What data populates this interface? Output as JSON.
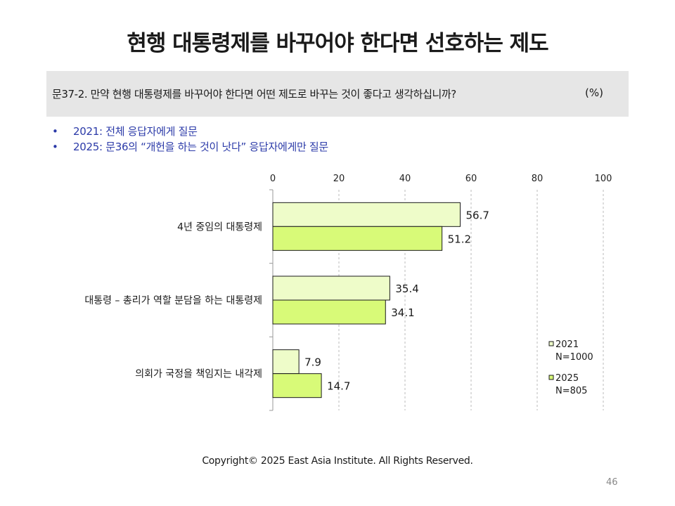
{
  "title": "현행 대통령제를 바꾸어야 한다면 선호하는 제도",
  "question": {
    "text": "문37-2. 만약 현행 대통령제를 바꾸어야 한다면 어떤 제도로 바꾸는 것이 좋다고 생각하십니까?",
    "unit": "(%)"
  },
  "notes": [
    {
      "bullet": "•",
      "text": "2021: 전체 응답자에게 질문"
    },
    {
      "bullet": "•",
      "text": "2025: 문36의 “개헌을 하는 것이 낫다” 응답자에게만 질문"
    }
  ],
  "chart_data": {
    "type": "bar",
    "orientation": "horizontal",
    "categories": [
      "4년 중임의 대통령제",
      "대통령 – 총리가 역할 분담을 하는 대통령제",
      "의회가 국정을 책임지는 내각제"
    ],
    "xlim": [
      0,
      100
    ],
    "x_ticks": [
      "0",
      "20",
      "40",
      "60",
      "80",
      "100"
    ],
    "grid": "vertical-dashed",
    "legend_position": "bottom-right",
    "series": [
      {
        "name": "2021",
        "n_label": "N=1000",
        "color": "#eefcc9",
        "values": [
          56.7,
          35.4,
          7.9
        ]
      },
      {
        "name": "2025",
        "n_label": "N=805",
        "color": "#d8fa78",
        "values": [
          51.2,
          34.1,
          14.7
        ]
      }
    ]
  },
  "footer": {
    "copyright": "Copyright© 2025 East Asia Institute. All Rights Reserved.",
    "page_number": "46"
  }
}
